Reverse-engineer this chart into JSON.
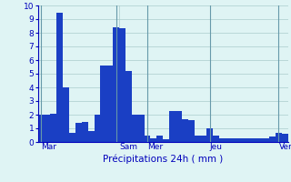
{
  "values": [
    2.0,
    2.0,
    2.1,
    9.5,
    4.0,
    0.7,
    1.4,
    1.5,
    0.8,
    2.0,
    5.6,
    5.6,
    8.4,
    8.3,
    5.2,
    2.0,
    2.0,
    0.5,
    0.3,
    0.5,
    0.2,
    2.3,
    2.3,
    1.7,
    1.6,
    0.5,
    0.5,
    1.0,
    0.5,
    0.3,
    0.3,
    0.3,
    0.3,
    0.3,
    0.3,
    0.3,
    0.3,
    0.4,
    0.7,
    0.6
  ],
  "day_labels": [
    "Mar",
    "Sam",
    "Mer",
    "Jeu",
    "Ven"
  ],
  "day_tick_positions": [
    0.5,
    13.0,
    17.5,
    27.5,
    38.5
  ],
  "day_vline_positions": [
    0.5,
    12.5,
    17.5,
    27.5,
    38.5
  ],
  "xlabel": "Précipitations 24h ( mm )",
  "ylim": [
    0,
    10
  ],
  "yticks": [
    0,
    1,
    2,
    3,
    4,
    5,
    6,
    7,
    8,
    9,
    10
  ],
  "bar_color": "#1a3fc4",
  "background_color": "#dff4f4",
  "grid_color": "#aacccc",
  "tick_color": "#0000bb",
  "label_color": "#0000bb",
  "figsize": [
    3.2,
    2.0
  ],
  "dpi": 100
}
